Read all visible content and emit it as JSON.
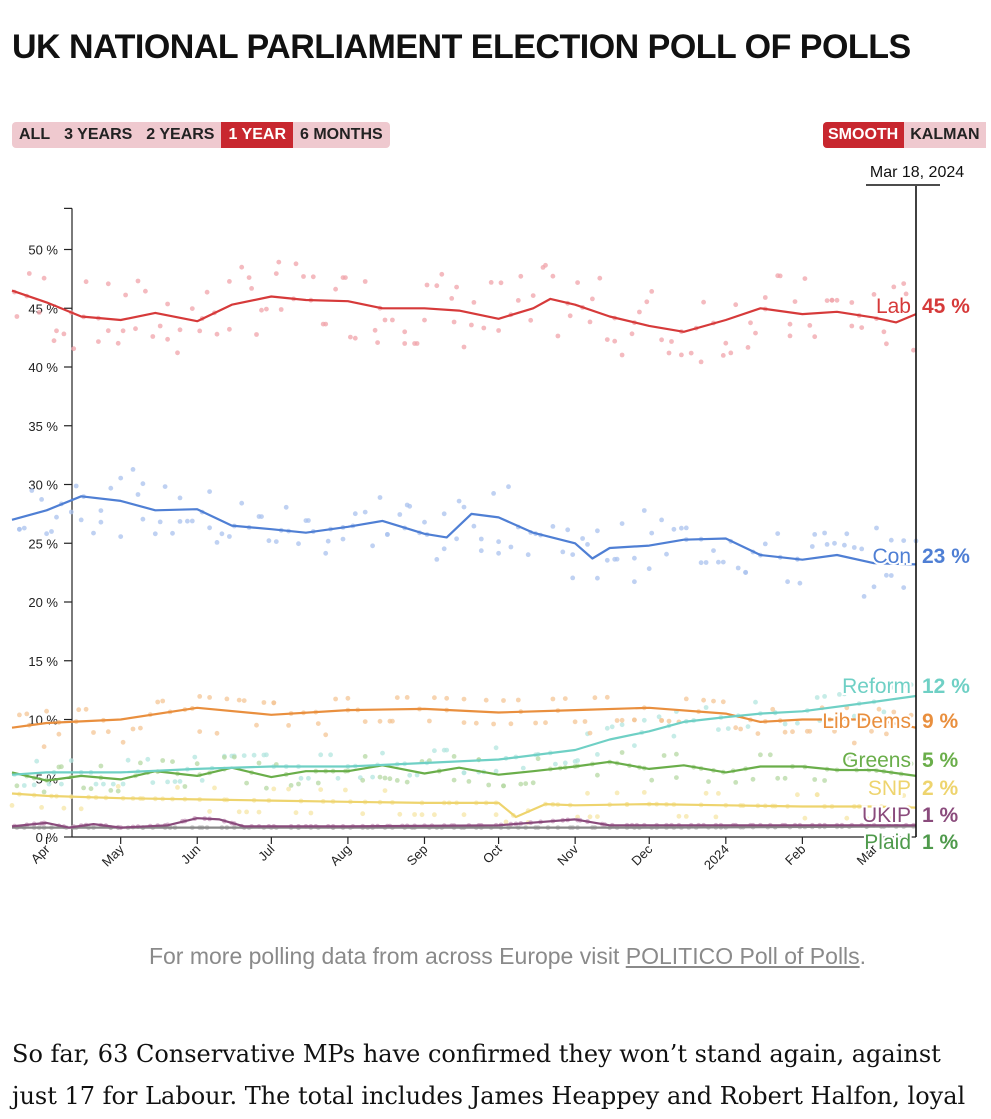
{
  "page": {
    "title": "UK NATIONAL PARLIAMENT ELECTION POLL OF POLLS"
  },
  "range_buttons": [
    {
      "label": "ALL",
      "active": false
    },
    {
      "label": "3 YEARS",
      "active": false
    },
    {
      "label": "2 YEARS",
      "active": false
    },
    {
      "label": "1 YEAR",
      "active": true
    },
    {
      "label": "6 MONTHS",
      "active": false
    }
  ],
  "method_buttons": [
    {
      "label": "SMOOTH",
      "active": true
    },
    {
      "label": "KALMAN",
      "active": false
    }
  ],
  "colors": {
    "accent": "#c8272f",
    "button_bg": "#efc9cf"
  },
  "chart_data": {
    "type": "line",
    "title": "",
    "xlabel": "",
    "ylabel": "",
    "ylim": [
      0,
      53.5
    ],
    "date_range": [
      "2023-03-18",
      "2024-03-18"
    ],
    "cursor_date_label": "Mar 18, 2024",
    "yticks": [
      0,
      5,
      10,
      15,
      20,
      25,
      30,
      35,
      40,
      45,
      50
    ],
    "ytick_labels": [
      "0 %",
      "5 %",
      "10 %",
      "15 %",
      "20 %",
      "25 %",
      "30 %",
      "35 %",
      "40 %",
      "45 %",
      "50 %"
    ],
    "xticks": [
      {
        "date": "2023-04-01",
        "label": "Apr"
      },
      {
        "date": "2023-05-01",
        "label": "May"
      },
      {
        "date": "2023-06-01",
        "label": "Jun"
      },
      {
        "date": "2023-07-01",
        "label": "Jul"
      },
      {
        "date": "2023-08-01",
        "label": "Aug"
      },
      {
        "date": "2023-09-01",
        "label": "Sep"
      },
      {
        "date": "2023-10-01",
        "label": "Oct"
      },
      {
        "date": "2023-11-01",
        "label": "Nov"
      },
      {
        "date": "2023-12-01",
        "label": "Dec"
      },
      {
        "date": "2024-01-01",
        "label": "2024"
      },
      {
        "date": "2024-02-01",
        "label": "Feb"
      },
      {
        "date": "2024-03-01",
        "label": "Mar"
      }
    ],
    "series": [
      {
        "name": "Lab",
        "color": "#d63a3a",
        "dot_color": "#f0a3aa",
        "current_label": "45 %",
        "points": [
          [
            "2023-03-18",
            46.5
          ],
          [
            "2023-04-01",
            45.5
          ],
          [
            "2023-04-15",
            44.3
          ],
          [
            "2023-05-01",
            44.0
          ],
          [
            "2023-05-15",
            44.6
          ],
          [
            "2023-06-01",
            43.9
          ],
          [
            "2023-06-15",
            45.3
          ],
          [
            "2023-07-01",
            46.0
          ],
          [
            "2023-07-15",
            45.7
          ],
          [
            "2023-08-01",
            45.6
          ],
          [
            "2023-08-15",
            45.0
          ],
          [
            "2023-09-01",
            45.0
          ],
          [
            "2023-09-15",
            44.8
          ],
          [
            "2023-10-01",
            44.1
          ],
          [
            "2023-10-15",
            45.0
          ],
          [
            "2023-10-22",
            45.8
          ],
          [
            "2023-11-01",
            45.3
          ],
          [
            "2023-11-15",
            44.3
          ],
          [
            "2023-12-01",
            43.5
          ],
          [
            "2023-12-15",
            43.0
          ],
          [
            "2024-01-01",
            44.0
          ],
          [
            "2024-01-15",
            45.0
          ],
          [
            "2024-02-01",
            44.5
          ],
          [
            "2024-02-15",
            44.7
          ],
          [
            "2024-03-01",
            44.2
          ],
          [
            "2024-03-10",
            43.8
          ],
          [
            "2024-03-18",
            44.5
          ]
        ]
      },
      {
        "name": "Con",
        "color": "#4f7fd4",
        "dot_color": "#a9c1ee",
        "current_label": "23 %",
        "points": [
          [
            "2023-03-18",
            27.0
          ],
          [
            "2023-04-01",
            27.8
          ],
          [
            "2023-04-15",
            29.0
          ],
          [
            "2023-05-01",
            28.6
          ],
          [
            "2023-05-15",
            27.8
          ],
          [
            "2023-06-01",
            27.9
          ],
          [
            "2023-06-15",
            26.5
          ],
          [
            "2023-07-01",
            26.2
          ],
          [
            "2023-07-15",
            25.9
          ],
          [
            "2023-08-01",
            26.4
          ],
          [
            "2023-08-15",
            26.9
          ],
          [
            "2023-09-01",
            25.8
          ],
          [
            "2023-09-10",
            25.5
          ],
          [
            "2023-09-20",
            27.5
          ],
          [
            "2023-10-01",
            27.2
          ],
          [
            "2023-10-15",
            25.9
          ],
          [
            "2023-11-01",
            25.0
          ],
          [
            "2023-11-08",
            23.7
          ],
          [
            "2023-11-15",
            24.6
          ],
          [
            "2023-12-01",
            24.8
          ],
          [
            "2023-12-15",
            25.3
          ],
          [
            "2024-01-01",
            25.4
          ],
          [
            "2024-01-15",
            24.0
          ],
          [
            "2024-02-01",
            23.6
          ],
          [
            "2024-02-15",
            24.0
          ],
          [
            "2024-03-01",
            23.3
          ],
          [
            "2024-03-18",
            23.2
          ]
        ]
      },
      {
        "name": "Reform",
        "color": "#6fd0c5",
        "dot_color": "#b3e6df",
        "current_label": "12 %",
        "points": [
          [
            "2023-03-18",
            5.3
          ],
          [
            "2023-04-01",
            5.5
          ],
          [
            "2023-05-01",
            5.5
          ],
          [
            "2023-06-01",
            5.8
          ],
          [
            "2023-07-01",
            6.0
          ],
          [
            "2023-08-01",
            6.0
          ],
          [
            "2023-09-01",
            6.3
          ],
          [
            "2023-10-01",
            6.6
          ],
          [
            "2023-11-01",
            7.4
          ],
          [
            "2023-11-15",
            8.3
          ],
          [
            "2023-12-01",
            9.0
          ],
          [
            "2023-12-15",
            9.8
          ],
          [
            "2024-01-01",
            10.2
          ],
          [
            "2024-01-15",
            10.5
          ],
          [
            "2024-02-01",
            10.7
          ],
          [
            "2024-03-01",
            11.5
          ],
          [
            "2024-03-18",
            12.0
          ]
        ]
      },
      {
        "name": "Lib Dems",
        "color": "#e98f3e",
        "dot_color": "#f4c595",
        "current_label": "9 %",
        "points": [
          [
            "2023-03-18",
            9.3
          ],
          [
            "2023-04-01",
            9.7
          ],
          [
            "2023-05-01",
            10.0
          ],
          [
            "2023-06-01",
            11.0
          ],
          [
            "2023-07-01",
            10.4
          ],
          [
            "2023-08-01",
            10.8
          ],
          [
            "2023-09-01",
            10.9
          ],
          [
            "2023-10-01",
            10.6
          ],
          [
            "2023-11-01",
            10.8
          ],
          [
            "2023-12-01",
            11.0
          ],
          [
            "2024-01-01",
            10.5
          ],
          [
            "2024-01-15",
            9.8
          ],
          [
            "2024-02-01",
            10.0
          ],
          [
            "2024-03-01",
            10.0
          ],
          [
            "2024-03-18",
            9.3
          ]
        ]
      },
      {
        "name": "Greens",
        "color": "#6aae4a",
        "dot_color": "#b5d8a3",
        "current_label": "5 %",
        "points": [
          [
            "2023-03-18",
            5.5
          ],
          [
            "2023-04-01",
            4.8
          ],
          [
            "2023-04-15",
            5.2
          ],
          [
            "2023-05-01",
            4.9
          ],
          [
            "2023-05-15",
            5.6
          ],
          [
            "2023-06-01",
            5.2
          ],
          [
            "2023-06-15",
            5.9
          ],
          [
            "2023-07-01",
            5.1
          ],
          [
            "2023-07-15",
            5.6
          ],
          [
            "2023-08-01",
            5.6
          ],
          [
            "2023-08-15",
            6.1
          ],
          [
            "2023-09-01",
            5.4
          ],
          [
            "2023-09-15",
            5.9
          ],
          [
            "2023-10-01",
            5.3
          ],
          [
            "2023-10-15",
            5.6
          ],
          [
            "2023-11-01",
            6.0
          ],
          [
            "2023-11-15",
            6.4
          ],
          [
            "2023-12-01",
            5.8
          ],
          [
            "2023-12-15",
            6.1
          ],
          [
            "2024-01-01",
            5.5
          ],
          [
            "2024-01-15",
            6.0
          ],
          [
            "2024-02-01",
            6.0
          ],
          [
            "2024-02-15",
            5.7
          ],
          [
            "2024-03-01",
            5.7
          ],
          [
            "2024-03-18",
            5.2
          ]
        ]
      },
      {
        "name": "SNP",
        "color": "#eed46e",
        "dot_color": "#f5e6a6",
        "current_label": "2 %",
        "points": [
          [
            "2023-03-18",
            3.7
          ],
          [
            "2023-04-01",
            3.5
          ],
          [
            "2023-05-01",
            3.3
          ],
          [
            "2023-06-01",
            3.2
          ],
          [
            "2023-07-01",
            3.1
          ],
          [
            "2023-08-01",
            3.0
          ],
          [
            "2023-09-01",
            2.9
          ],
          [
            "2023-10-01",
            2.9
          ],
          [
            "2023-10-08",
            1.7
          ],
          [
            "2023-10-20",
            2.8
          ],
          [
            "2023-11-01",
            2.7
          ],
          [
            "2023-12-01",
            2.8
          ],
          [
            "2024-01-01",
            2.7
          ],
          [
            "2024-02-01",
            2.6
          ],
          [
            "2024-03-01",
            2.6
          ],
          [
            "2024-03-18",
            2.5
          ]
        ]
      },
      {
        "name": "UKIP",
        "color": "#8a4b7c",
        "dot_color": "#c99bbd",
        "current_label": "1 %",
        "points": [
          [
            "2023-03-18",
            0.9
          ],
          [
            "2023-04-01",
            1.2
          ],
          [
            "2023-04-10",
            0.8
          ],
          [
            "2023-04-20",
            1.1
          ],
          [
            "2023-05-01",
            0.8
          ],
          [
            "2023-05-20",
            1.0
          ],
          [
            "2023-06-01",
            1.6
          ],
          [
            "2023-06-10",
            1.5
          ],
          [
            "2023-06-20",
            0.9
          ],
          [
            "2023-08-01",
            0.9
          ],
          [
            "2023-10-01",
            1.0
          ],
          [
            "2023-11-01",
            1.5
          ],
          [
            "2023-11-15",
            1.0
          ],
          [
            "2024-01-01",
            1.0
          ],
          [
            "2024-03-18",
            1.0
          ]
        ]
      },
      {
        "name": "Plaid",
        "color": "#888888",
        "dot_color": "#bbbbbb",
        "label_color": "#4f9a4c",
        "current_label": "1 %",
        "points": [
          [
            "2023-03-18",
            0.8
          ],
          [
            "2023-06-01",
            0.8
          ],
          [
            "2023-09-01",
            0.8
          ],
          [
            "2023-12-01",
            0.8
          ],
          [
            "2024-03-18",
            0.9
          ]
        ]
      }
    ]
  },
  "footer": {
    "note_prefix": "For more polling data from across Europe visit ",
    "link_text": "POLITICO Poll of Polls",
    "note_suffix": "."
  },
  "article": {
    "line1": "So far, 63 Conservative MPs have confirmed they won’t stand again, against",
    "line2": "just 17 for Labour. The total includes James Heappey and Robert Halfon, loyal"
  }
}
